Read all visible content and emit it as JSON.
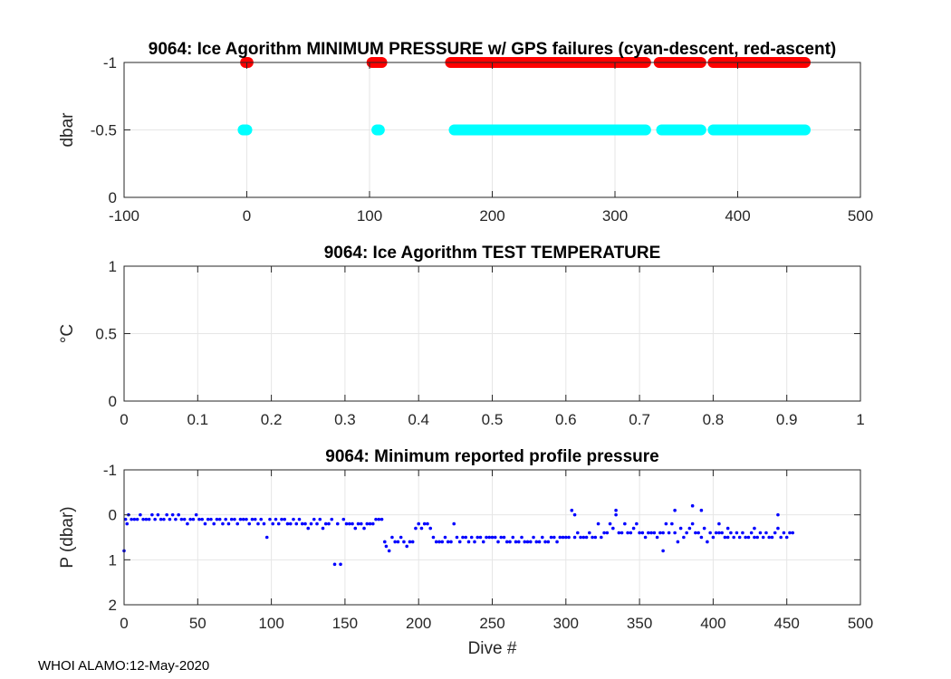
{
  "footer": "WHOI ALAMO:12-May-2020",
  "chart_data": [
    {
      "type": "scatter",
      "title": "9064: Ice Agorithm MINIMUM PRESSURE w/ GPS failures (cyan-descent, red-ascent)",
      "xlabel": "",
      "ylabel": "dbar",
      "xlim": [
        -100,
        500
      ],
      "ylim": [
        -1,
        0
      ],
      "y_reversed": true,
      "xticks": [
        "-100",
        "0",
        "100",
        "200",
        "300",
        "400",
        "500"
      ],
      "yticks": [
        "-1",
        "-0.5",
        "0"
      ],
      "grid": true,
      "series": [
        {
          "color": "#ff0000",
          "y_value": -1,
          "x_ranges": [
            [
              -1,
              1
            ],
            [
              102,
              110
            ],
            [
              166,
              232
            ],
            [
              232,
              325
            ],
            [
              336,
              370
            ],
            [
              380,
              455
            ]
          ]
        },
        {
          "color": "#00ffff",
          "y_value": -0.5,
          "x_ranges": [
            [
              -3,
              0
            ],
            [
              106,
              108
            ],
            [
              169,
              325
            ],
            [
              338,
              370
            ],
            [
              380,
              455
            ]
          ]
        }
      ]
    },
    {
      "type": "scatter",
      "title": "9064: Ice Agorithm TEST TEMPERATURE",
      "xlabel": "",
      "ylabel": "°C",
      "xlim": [
        0,
        1
      ],
      "ylim": [
        0,
        1
      ],
      "xticks": [
        "0",
        "0.1",
        "0.2",
        "0.3",
        "0.4",
        "0.5",
        "0.6",
        "0.7",
        "0.8",
        "0.9",
        "1"
      ],
      "yticks": [
        "0",
        "0.5",
        "1"
      ],
      "grid": true,
      "series": []
    },
    {
      "type": "scatter",
      "title": "9064: Minimum reported profile pressure",
      "xlabel": "Dive #",
      "ylabel": "P (dbar)",
      "xlim": [
        0,
        500
      ],
      "ylim": [
        -1,
        2
      ],
      "y_reversed": true,
      "xticks": [
        "0",
        "50",
        "100",
        "150",
        "200",
        "250",
        "300",
        "350",
        "400",
        "450",
        "500"
      ],
      "yticks": [
        "-1",
        "0",
        "1",
        "2"
      ],
      "grid": true,
      "series": [
        {
          "color": "#0000ff",
          "points": [
            [
              0,
              0.8
            ],
            [
              1,
              0.1
            ],
            [
              2,
              0.2
            ],
            [
              3,
              0.0
            ],
            [
              5,
              0.1
            ],
            [
              7,
              0.1
            ],
            [
              9,
              0.1
            ],
            [
              11,
              0.0
            ],
            [
              13,
              0.1
            ],
            [
              15,
              0.1
            ],
            [
              17,
              0.1
            ],
            [
              19,
              0.0
            ],
            [
              21,
              0.1
            ],
            [
              23,
              0.0
            ],
            [
              25,
              0.1
            ],
            [
              27,
              0.1
            ],
            [
              29,
              0.0
            ],
            [
              31,
              0.1
            ],
            [
              33,
              0.0
            ],
            [
              35,
              0.1
            ],
            [
              37,
              0.0
            ],
            [
              39,
              0.1
            ],
            [
              41,
              0.1
            ],
            [
              43,
              0.2
            ],
            [
              45,
              0.1
            ],
            [
              47,
              0.1
            ],
            [
              49,
              0.0
            ],
            [
              51,
              0.1
            ],
            [
              53,
              0.1
            ],
            [
              55,
              0.2
            ],
            [
              57,
              0.1
            ],
            [
              59,
              0.1
            ],
            [
              61,
              0.2
            ],
            [
              63,
              0.1
            ],
            [
              65,
              0.1
            ],
            [
              67,
              0.2
            ],
            [
              69,
              0.1
            ],
            [
              71,
              0.2
            ],
            [
              73,
              0.1
            ],
            [
              75,
              0.1
            ],
            [
              77,
              0.2
            ],
            [
              79,
              0.1
            ],
            [
              81,
              0.1
            ],
            [
              83,
              0.1
            ],
            [
              85,
              0.2
            ],
            [
              87,
              0.1
            ],
            [
              89,
              0.1
            ],
            [
              91,
              0.2
            ],
            [
              93,
              0.1
            ],
            [
              95,
              0.2
            ],
            [
              97,
              0.5
            ],
            [
              99,
              0.1
            ],
            [
              101,
              0.2
            ],
            [
              103,
              0.1
            ],
            [
              105,
              0.2
            ],
            [
              107,
              0.1
            ],
            [
              109,
              0.1
            ],
            [
              111,
              0.2
            ],
            [
              113,
              0.2
            ],
            [
              115,
              0.1
            ],
            [
              117,
              0.2
            ],
            [
              119,
              0.1
            ],
            [
              121,
              0.2
            ],
            [
              123,
              0.2
            ],
            [
              125,
              0.3
            ],
            [
              127,
              0.2
            ],
            [
              129,
              0.1
            ],
            [
              131,
              0.2
            ],
            [
              133,
              0.1
            ],
            [
              135,
              0.3
            ],
            [
              137,
              0.2
            ],
            [
              139,
              0.2
            ],
            [
              141,
              0.1
            ],
            [
              143,
              1.1
            ],
            [
              145,
              0.2
            ],
            [
              147,
              1.1
            ],
            [
              149,
              0.1
            ],
            [
              151,
              0.2
            ],
            [
              153,
              0.2
            ],
            [
              155,
              0.2
            ],
            [
              157,
              0.3
            ],
            [
              159,
              0.2
            ],
            [
              161,
              0.2
            ],
            [
              163,
              0.3
            ],
            [
              165,
              0.2
            ],
            [
              167,
              0.2
            ],
            [
              169,
              0.2
            ],
            [
              171,
              0.1
            ],
            [
              173,
              0.1
            ],
            [
              175,
              0.1
            ],
            [
              177,
              0.6
            ],
            [
              178,
              0.7
            ],
            [
              180,
              0.8
            ],
            [
              182,
              0.5
            ],
            [
              184,
              0.6
            ],
            [
              186,
              0.6
            ],
            [
              188,
              0.5
            ],
            [
              190,
              0.6
            ],
            [
              192,
              0.7
            ],
            [
              194,
              0.6
            ],
            [
              196,
              0.6
            ],
            [
              198,
              0.3
            ],
            [
              200,
              0.2
            ],
            [
              202,
              0.3
            ],
            [
              204,
              0.2
            ],
            [
              206,
              0.2
            ],
            [
              208,
              0.3
            ],
            [
              210,
              0.5
            ],
            [
              212,
              0.6
            ],
            [
              214,
              0.6
            ],
            [
              216,
              0.6
            ],
            [
              218,
              0.5
            ],
            [
              220,
              0.6
            ],
            [
              222,
              0.6
            ],
            [
              224,
              0.2
            ],
            [
              226,
              0.5
            ],
            [
              228,
              0.6
            ],
            [
              230,
              0.5
            ],
            [
              232,
              0.5
            ],
            [
              234,
              0.6
            ],
            [
              236,
              0.5
            ],
            [
              238,
              0.6
            ],
            [
              240,
              0.5
            ],
            [
              242,
              0.5
            ],
            [
              244,
              0.6
            ],
            [
              246,
              0.5
            ],
            [
              248,
              0.5
            ],
            [
              250,
              0.5
            ],
            [
              252,
              0.5
            ],
            [
              254,
              0.6
            ],
            [
              256,
              0.5
            ],
            [
              258,
              0.5
            ],
            [
              260,
              0.6
            ],
            [
              262,
              0.6
            ],
            [
              264,
              0.5
            ],
            [
              266,
              0.6
            ],
            [
              268,
              0.6
            ],
            [
              270,
              0.5
            ],
            [
              272,
              0.6
            ],
            [
              274,
              0.6
            ],
            [
              276,
              0.6
            ],
            [
              278,
              0.5
            ],
            [
              280,
              0.6
            ],
            [
              282,
              0.6
            ],
            [
              284,
              0.5
            ],
            [
              286,
              0.6
            ],
            [
              288,
              0.6
            ],
            [
              290,
              0.5
            ],
            [
              292,
              0.5
            ],
            [
              294,
              0.6
            ],
            [
              296,
              0.5
            ],
            [
              298,
              0.5
            ],
            [
              300,
              0.5
            ],
            [
              302,
              0.5
            ],
            [
              304,
              -0.1
            ],
            [
              306,
              0.5
            ],
            [
              308,
              0.4
            ],
            [
              310,
              0.5
            ],
            [
              312,
              0.5
            ],
            [
              314,
              0.5
            ],
            [
              316,
              0.4
            ],
            [
              318,
              0.5
            ],
            [
              320,
              0.5
            ],
            [
              322,
              0.2
            ],
            [
              324,
              0.5
            ],
            [
              326,
              0.4
            ],
            [
              328,
              0.4
            ],
            [
              330,
              0.2
            ],
            [
              332,
              0.3
            ],
            [
              334,
              0.0
            ],
            [
              336,
              0.4
            ],
            [
              338,
              0.4
            ],
            [
              340,
              0.2
            ],
            [
              342,
              0.4
            ],
            [
              344,
              0.4
            ],
            [
              346,
              0.3
            ],
            [
              348,
              0.2
            ],
            [
              350,
              0.4
            ],
            [
              352,
              0.4
            ],
            [
              354,
              0.5
            ],
            [
              356,
              0.4
            ],
            [
              358,
              0.4
            ],
            [
              360,
              0.4
            ],
            [
              362,
              0.5
            ],
            [
              364,
              0.4
            ],
            [
              366,
              0.4
            ],
            [
              368,
              0.2
            ],
            [
              370,
              0.4
            ],
            [
              372,
              0.2
            ],
            [
              374,
              0.4
            ],
            [
              376,
              0.6
            ],
            [
              378,
              0.3
            ],
            [
              380,
              0.5
            ],
            [
              382,
              0.4
            ],
            [
              384,
              0.3
            ],
            [
              386,
              0.2
            ],
            [
              388,
              0.4
            ],
            [
              390,
              0.4
            ],
            [
              392,
              0.5
            ],
            [
              394,
              0.3
            ],
            [
              396,
              0.6
            ],
            [
              398,
              0.4
            ],
            [
              400,
              0.5
            ],
            [
              402,
              0.4
            ],
            [
              404,
              0.4
            ],
            [
              406,
              0.4
            ],
            [
              408,
              0.5
            ],
            [
              410,
              0.5
            ],
            [
              412,
              0.4
            ],
            [
              414,
              0.5
            ],
            [
              416,
              0.4
            ],
            [
              418,
              0.5
            ],
            [
              420,
              0.4
            ],
            [
              422,
              0.5
            ],
            [
              424,
              0.5
            ],
            [
              426,
              0.4
            ],
            [
              428,
              0.5
            ],
            [
              430,
              0.5
            ],
            [
              432,
              0.4
            ],
            [
              434,
              0.5
            ],
            [
              436,
              0.4
            ],
            [
              438,
              0.5
            ],
            [
              440,
              0.5
            ],
            [
              442,
              0.4
            ],
            [
              444,
              0.3
            ],
            [
              446,
              0.5
            ],
            [
              448,
              0.4
            ],
            [
              450,
              0.5
            ],
            [
              452,
              0.4
            ],
            [
              454,
              0.4
            ],
            [
              306,
              0.0
            ],
            [
              334,
              -0.1
            ],
            [
              374,
              -0.1
            ],
            [
              386,
              -0.2
            ],
            [
              392,
              -0.1
            ],
            [
              366,
              0.8
            ],
            [
              404,
              0.2
            ],
            [
              410,
              0.3
            ],
            [
              444,
              0.0
            ],
            [
              428,
              0.3
            ]
          ]
        }
      ]
    }
  ]
}
